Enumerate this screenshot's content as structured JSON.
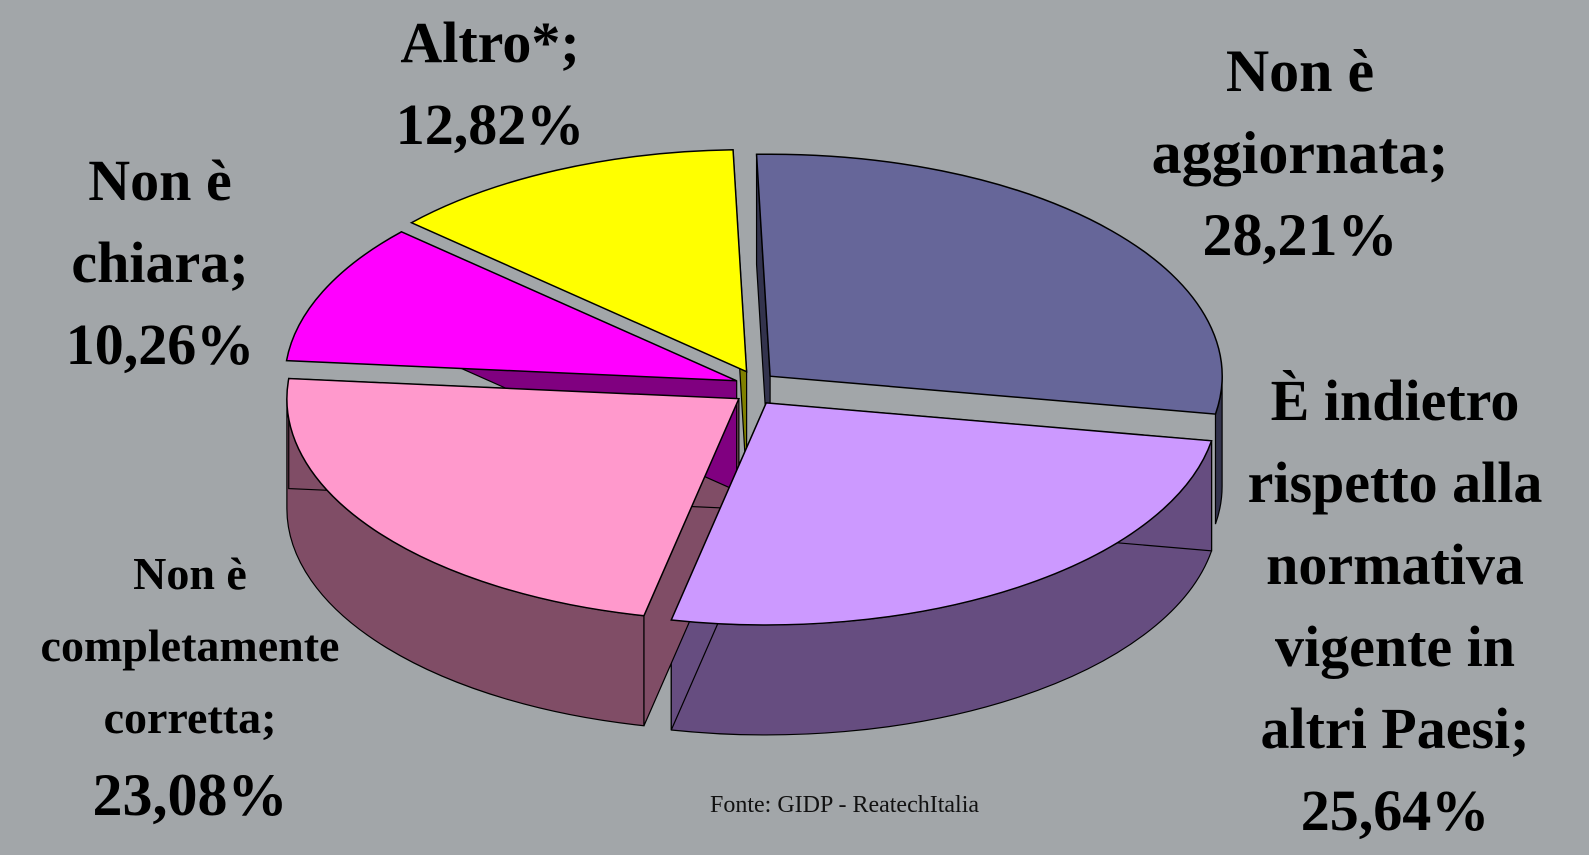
{
  "chart_data": {
    "type": "pie",
    "categories": [
      "Non è aggiornata;",
      "È indietro rispetto alla normativa vigente in altri Paesi;",
      "Non è completamente corretta;",
      "Non è chiara;",
      "Altro*;"
    ],
    "values": [
      28.21,
      25.64,
      23.08,
      10.26,
      12.82
    ],
    "value_labels": [
      "28,21%",
      "25,64%",
      "23,08%",
      "10,26%",
      "12,82%"
    ],
    "colors": [
      "#666699",
      "#cc99ff",
      "#ff99cc",
      "#ff00ff",
      "#ffff00"
    ],
    "source": "Fonte: GIDP - ReatechItalia"
  }
}
